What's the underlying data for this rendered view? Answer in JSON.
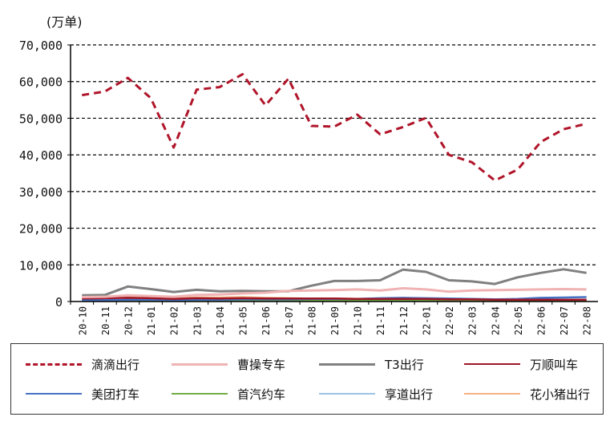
{
  "unit_label": "(万单)",
  "chart_data": {
    "type": "line",
    "ylabel": "",
    "xlabel": "",
    "ylim": [
      0,
      70000
    ],
    "yticks": [
      0,
      10000,
      20000,
      30000,
      40000,
      50000,
      60000,
      70000
    ],
    "ytick_labels": [
      "0",
      "10,000",
      "20,000",
      "30,000",
      "40,000",
      "50,000",
      "60,000",
      "70,000"
    ],
    "grid": "horizontal dashed",
    "legend_position": "bottom",
    "categories": [
      "20-10",
      "20-11",
      "20-12",
      "21-01",
      "21-02",
      "21-03",
      "21-04",
      "21-05",
      "21-06",
      "21-07",
      "21-08",
      "21-09",
      "21-10",
      "21-11",
      "21-12",
      "22-01",
      "22-02",
      "22-03",
      "22-04",
      "22-05",
      "22-06",
      "22-07",
      "22-08"
    ],
    "series": [
      {
        "name": "滴滴出行",
        "color": "#b0152a",
        "dash": "dash",
        "width": 3,
        "values": [
          56300,
          57300,
          61000,
          55500,
          42000,
          57800,
          58500,
          62000,
          53500,
          60800,
          47900,
          47700,
          51000,
          45600,
          47600,
          50100,
          40000,
          38000,
          33000,
          36000,
          43500,
          47000,
          48500
        ]
      },
      {
        "name": "曹操专车",
        "color": "#f0b3b3",
        "dash": "solid",
        "width": 3,
        "values": [
          1200,
          1300,
          1700,
          1500,
          1300,
          1800,
          1900,
          2200,
          2400,
          2900,
          3000,
          3100,
          3300,
          3000,
          3600,
          3300,
          2700,
          3000,
          3100,
          3200,
          3300,
          3400,
          3300
        ]
      },
      {
        "name": "T3出行",
        "color": "#808080",
        "dash": "solid",
        "width": 3,
        "values": [
          1700,
          1800,
          4100,
          3400,
          2600,
          3200,
          2800,
          2900,
          2800,
          2800,
          4300,
          5600,
          5600,
          5800,
          8700,
          8100,
          5800,
          5500,
          4800,
          6600,
          7800,
          8800,
          7800
        ]
      },
      {
        "name": "万顺叫车",
        "color": "#a01525",
        "dash": "solid",
        "width": 2.5,
        "values": [
          800,
          900,
          1000,
          900,
          700,
          900,
          800,
          900,
          800,
          800,
          800,
          800,
          700,
          700,
          700,
          700,
          600,
          600,
          500,
          500,
          500,
          500,
          500
        ]
      },
      {
        "name": "美团打车",
        "color": "#4472c4",
        "dash": "solid",
        "width": 2.5,
        "values": [
          400,
          400,
          500,
          500,
          400,
          500,
          500,
          600,
          600,
          600,
          700,
          700,
          700,
          900,
          1000,
          900,
          800,
          700,
          600,
          700,
          1000,
          1100,
          1200
        ]
      },
      {
        "name": "首汽约车",
        "color": "#70ad47",
        "dash": "solid",
        "width": 2.5,
        "values": [
          300,
          300,
          300,
          300,
          200,
          300,
          300,
          300,
          300,
          300,
          300,
          300,
          300,
          300,
          300,
          300,
          200,
          200,
          200,
          200,
          200,
          200,
          200
        ]
      },
      {
        "name": "享道出行",
        "color": "#9dc3e6",
        "dash": "solid",
        "width": 2.5,
        "values": [
          200,
          200,
          300,
          200,
          200,
          200,
          300,
          300,
          300,
          300,
          300,
          300,
          300,
          300,
          400,
          300,
          300,
          300,
          300,
          300,
          300,
          300,
          300
        ]
      },
      {
        "name": "花小猪出行",
        "color": "#f4b183",
        "dash": "solid",
        "width": 2.5,
        "values": [
          1000,
          1300,
          1500,
          1400,
          900,
          1100,
          1100,
          1200,
          1000,
          900,
          800,
          800,
          700,
          700,
          600,
          600,
          500,
          500,
          400,
          400,
          400,
          400,
          400
        ]
      }
    ]
  }
}
